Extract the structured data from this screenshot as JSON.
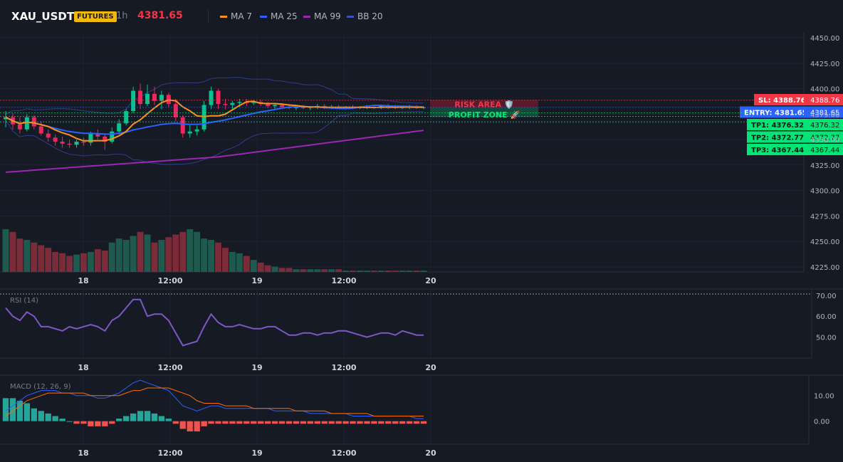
{
  "header": {
    "symbol": "XAU_USDT",
    "badge": "FUTURES",
    "timeframe": "1h",
    "price": "4381.65",
    "indicators": [
      {
        "label": "MA 7",
        "color": "#f7931a"
      },
      {
        "label": "MA 25",
        "color": "#2962ff"
      },
      {
        "label": "MA 99",
        "color": "#9c27b0"
      },
      {
        "label": "BB 20",
        "color": "#3f51b5"
      }
    ]
  },
  "trade": {
    "risk_label": "RISK AREA 🛡️",
    "profit_label": "PROFIT ZONE 🚀",
    "sl": {
      "label": "SL: 4388.76",
      "axis": "4388.76",
      "value": 4388.76,
      "color": "#f23645"
    },
    "entry": {
      "label": "ENTRY: 4381.65",
      "axis": "4381.65",
      "value": 4381.65,
      "color": "#2962ff"
    },
    "tps": [
      {
        "label": "TP1: 4376.32",
        "axis": "4376.32",
        "value": 4376.32
      },
      {
        "label": "TP2: 4372.77",
        "axis": "4372.77",
        "value": 4372.77
      },
      {
        "label": "TP3: 4367.44",
        "axis": "4367.44",
        "value": 4367.44
      }
    ],
    "tp_color": "#00e676"
  },
  "chart_data": [
    {
      "type": "candlestick",
      "name": "price",
      "x_ticks": [
        "18",
        "12:00",
        "19",
        "12:00",
        "20"
      ],
      "y_ticks": [
        "4450.00",
        "4425.00",
        "4400.00",
        "4375.00",
        "4350.00",
        "4325.00",
        "4300.00",
        "4275.00",
        "4250.00",
        "4225.00"
      ],
      "ylim": [
        4220,
        4455
      ],
      "candles": [
        [
          4370,
          4378,
          4362,
          4372
        ],
        [
          4372,
          4376,
          4360,
          4365
        ],
        [
          4365,
          4372,
          4356,
          4360
        ],
        [
          4360,
          4375,
          4358,
          4372
        ],
        [
          4372,
          4374,
          4360,
          4363
        ],
        [
          4363,
          4368,
          4354,
          4356
        ],
        [
          4356,
          4360,
          4348,
          4352
        ],
        [
          4352,
          4355,
          4344,
          4348
        ],
        [
          4348,
          4353,
          4342,
          4346
        ],
        [
          4346,
          4350,
          4342,
          4345
        ],
        [
          4345,
          4350,
          4342,
          4348
        ],
        [
          4348,
          4352,
          4344,
          4347
        ],
        [
          4347,
          4358,
          4344,
          4356
        ],
        [
          4356,
          4360,
          4350,
          4353
        ],
        [
          4353,
          4356,
          4340,
          4348
        ],
        [
          4348,
          4362,
          4346,
          4358
        ],
        [
          4358,
          4370,
          4355,
          4366
        ],
        [
          4366,
          4380,
          4364,
          4378
        ],
        [
          4378,
          4402,
          4376,
          4398
        ],
        [
          4398,
          4405,
          4380,
          4385
        ],
        [
          4385,
          4404,
          4383,
          4395
        ],
        [
          4395,
          4402,
          4384,
          4388
        ],
        [
          4388,
          4398,
          4380,
          4394
        ],
        [
          4394,
          4396,
          4382,
          4385
        ],
        [
          4385,
          4390,
          4368,
          4372
        ],
        [
          4372,
          4374,
          4352,
          4356
        ],
        [
          4356,
          4364,
          4352,
          4358
        ],
        [
          4358,
          4364,
          4354,
          4360
        ],
        [
          4360,
          4388,
          4358,
          4384
        ],
        [
          4384,
          4402,
          4380,
          4398
        ],
        [
          4398,
          4400,
          4380,
          4385
        ],
        [
          4385,
          4390,
          4380,
          4384
        ],
        [
          4384,
          4388,
          4380,
          4386
        ],
        [
          4386,
          4390,
          4382,
          4387
        ],
        [
          4387,
          4390,
          4383,
          4386
        ],
        [
          4386,
          4389,
          4384,
          4387
        ],
        [
          4387,
          4389,
          4383,
          4385
        ],
        [
          4385,
          4387,
          4381,
          4383
        ],
        [
          4383,
          4386,
          4380,
          4384
        ],
        [
          4384,
          4386,
          4380,
          4382
        ],
        [
          4382,
          4385,
          4380,
          4381
        ],
        [
          4381,
          4384,
          4379,
          4382
        ],
        [
          4382,
          4384,
          4380,
          4381
        ],
        [
          4381,
          4383,
          4379,
          4382
        ],
        [
          4382,
          4385,
          4380,
          4383
        ],
        [
          4383,
          4385,
          4380,
          4381
        ],
        [
          4381,
          4384,
          4380,
          4382
        ],
        [
          4382,
          4384,
          4380,
          4381
        ],
        [
          4381,
          4383,
          4380,
          4382
        ],
        [
          4382,
          4384,
          4380,
          4381
        ],
        [
          4381,
          4383,
          4380,
          4382
        ],
        [
          4382,
          4384,
          4380,
          4382
        ],
        [
          4382,
          4384,
          4380,
          4381
        ],
        [
          4381,
          4384,
          4380,
          4383
        ],
        [
          4383,
          4385,
          4380,
          4382
        ],
        [
          4382,
          4384,
          4380,
          4381
        ],
        [
          4381,
          4383,
          4380,
          4382
        ],
        [
          4382,
          4384,
          4380,
          4382
        ],
        [
          4382,
          4384,
          4380,
          4381
        ],
        [
          4381,
          4383,
          4380,
          4381.65
        ]
      ],
      "volume": [
        32,
        30,
        25,
        24,
        22,
        20,
        18,
        15,
        14,
        12,
        13,
        14,
        15,
        17,
        16,
        22,
        25,
        24,
        27,
        30,
        28,
        22,
        24,
        26,
        28,
        30,
        32,
        30,
        25,
        24,
        22,
        18,
        15,
        14,
        12,
        9,
        7,
        5,
        4,
        3,
        3,
        2,
        2,
        2,
        2,
        2,
        2,
        2,
        1,
        1,
        1,
        1,
        1,
        1,
        1,
        1,
        1,
        1,
        1,
        1
      ]
    },
    {
      "type": "line",
      "name": "RSI (14)",
      "y_ticks": [
        "70.00",
        "60.00",
        "50.00"
      ],
      "ylim": [
        40,
        73
      ],
      "values": [
        64,
        60,
        58,
        62,
        60,
        55,
        55,
        54,
        53,
        55,
        54,
        55,
        56,
        55,
        53,
        58,
        60,
        64,
        68,
        68,
        60,
        61,
        61,
        58,
        52,
        46,
        47,
        48,
        55,
        61,
        57,
        55,
        55,
        56,
        55,
        54,
        54,
        55,
        55,
        53,
        51,
        51,
        52,
        52,
        51,
        52,
        52,
        53,
        53,
        52,
        51,
        50,
        51,
        52,
        52,
        51,
        53,
        52,
        51,
        51
      ]
    },
    {
      "type": "bar",
      "name": "MACD (12, 26, 9)",
      "y_ticks": [
        "10.00",
        "0.00"
      ],
      "ylim": [
        -9,
        18
      ],
      "histogram": [
        9,
        9,
        8,
        7,
        5,
        4,
        3,
        2,
        1,
        0,
        -1,
        -1,
        -2,
        -2,
        -2,
        -1,
        1,
        2,
        3,
        4,
        4,
        3,
        2,
        1,
        -1,
        -3,
        -4,
        -4,
        -2,
        -1,
        -1,
        -1,
        -1,
        -1,
        -1,
        -1,
        -1,
        -1,
        -1,
        -1,
        -1,
        -1,
        -1,
        -1,
        -1,
        -1,
        -1,
        -1,
        -1,
        -1,
        -1,
        -1,
        -1,
        -1,
        -1,
        -1,
        -1,
        -1,
        -1,
        -1
      ],
      "macd": [
        4,
        6,
        8,
        10,
        11,
        12,
        12,
        12,
        11,
        11,
        10,
        10,
        10,
        9,
        9,
        10,
        11,
        13,
        15,
        16,
        15,
        14,
        13,
        12,
        9,
        6,
        5,
        4,
        5,
        6,
        6,
        5,
        5,
        5,
        5,
        5,
        5,
        5,
        4,
        4,
        4,
        4,
        4,
        3,
        3,
        3,
        3,
        3,
        3,
        2,
        2,
        2,
        2,
        2,
        2,
        2,
        2,
        2,
        1,
        1
      ],
      "signal": [
        2,
        4,
        6,
        8,
        9,
        10,
        11,
        11,
        11,
        11,
        11,
        11,
        10,
        10,
        10,
        10,
        10,
        11,
        12,
        12,
        13,
        13,
        13,
        13,
        12,
        11,
        10,
        8,
        7,
        7,
        7,
        6,
        6,
        6,
        6,
        5,
        5,
        5,
        5,
        5,
        5,
        4,
        4,
        4,
        4,
        4,
        3,
        3,
        3,
        3,
        3,
        3,
        2,
        2,
        2,
        2,
        2,
        2,
        2,
        2
      ]
    }
  ]
}
